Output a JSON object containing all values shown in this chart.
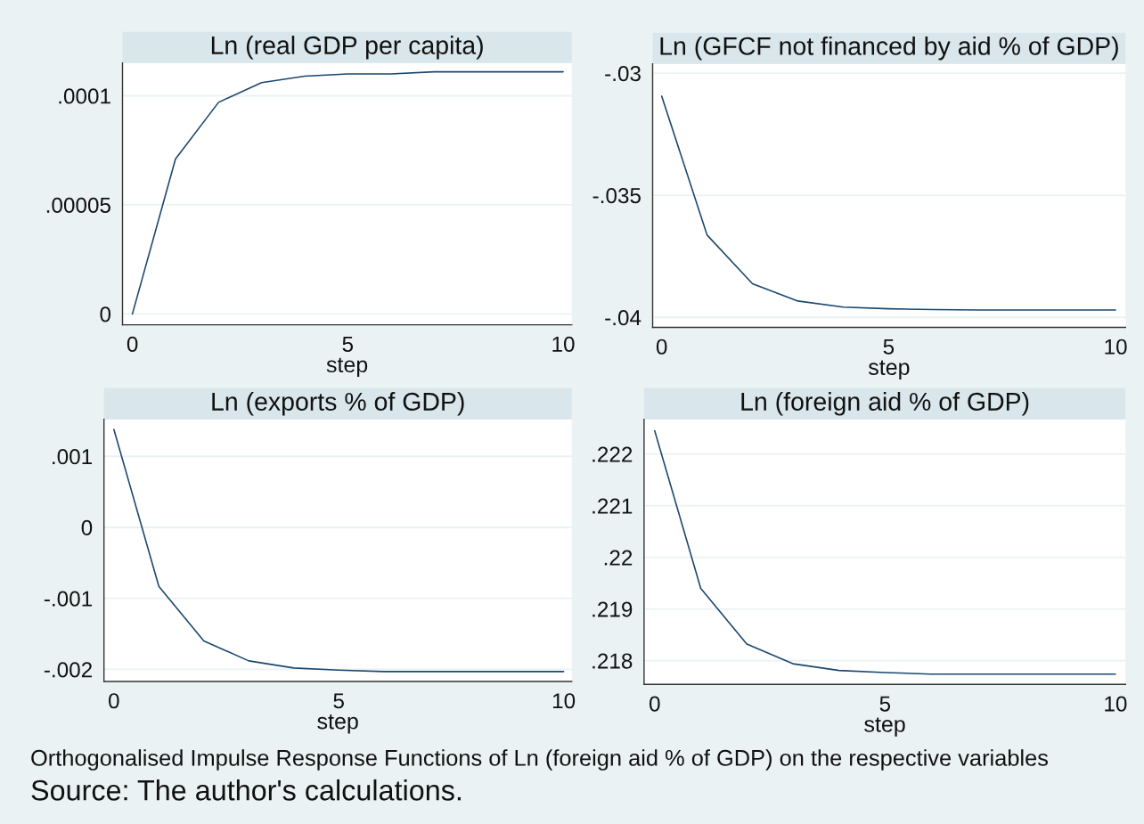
{
  "chart_data": [
    {
      "type": "line",
      "title": "Ln (real GDP per capita)",
      "xlabel": "step",
      "x": [
        0,
        1,
        2,
        3,
        4,
        5,
        6,
        7,
        8,
        9,
        10
      ],
      "series": [
        {
          "color": "#1a476f",
          "values": [
            0,
            7.1e-05,
            9.7e-05,
            0.000106,
            0.000109,
            0.00011,
            0.00011,
            0.000111,
            0.000111,
            0.000111,
            0.000111
          ]
        }
      ],
      "xlim": [
        -0.23,
        10.2
      ],
      "ylim": [
        -5e-06,
        0.000115
      ],
      "xticks": [
        0,
        5,
        10
      ],
      "yticks": [
        0,
        {
          "value": 5e-05,
          "label": ".00005"
        },
        {
          "value": 0.0001,
          "label": ".0001"
        }
      ],
      "grid": "y"
    },
    {
      "type": "line",
      "title": "Ln (GFCF not financed by aid % of GDP)",
      "xlabel": "step",
      "x": [
        0,
        1,
        2,
        3,
        4,
        5,
        6,
        7,
        8,
        9,
        10
      ],
      "series": [
        {
          "color": "#1a476f",
          "values": [
            -0.03094,
            -0.03663,
            -0.03862,
            -0.03933,
            -0.03958,
            -0.03965,
            -0.03968,
            -0.0397,
            -0.0397,
            -0.0397,
            -0.0397
          ]
        }
      ],
      "xlim": [
        -0.2,
        10.22
      ],
      "ylim": [
        -0.04041,
        -0.02962
      ],
      "xticks": [
        0,
        5,
        10
      ],
      "yticks": [
        {
          "value": -0.04,
          "label": "-.04"
        },
        {
          "value": -0.035,
          "label": "-.035"
        },
        {
          "value": -0.03,
          "label": "-.03"
        }
      ],
      "grid": "y"
    },
    {
      "type": "line",
      "title": "Ln (exports % of GDP)",
      "xlabel": "step",
      "x": [
        0,
        1,
        2,
        3,
        4,
        5,
        6,
        7,
        8,
        9,
        10
      ],
      "series": [
        {
          "color": "#1a476f",
          "values": [
            0.00138,
            -0.00083,
            -0.0016,
            -0.00188,
            -0.00198,
            -0.00201,
            -0.00203,
            -0.00203,
            -0.00203,
            -0.00203,
            -0.00203
          ]
        }
      ],
      "xlim": [
        -0.22,
        10.18
      ],
      "ylim": [
        -0.00217,
        0.00152
      ],
      "xticks": [
        0,
        5,
        10
      ],
      "yticks": [
        {
          "value": -0.002,
          "label": "-.002"
        },
        {
          "value": -0.001,
          "label": "-.001"
        },
        0,
        {
          "value": 0.001,
          "label": ".001"
        }
      ],
      "grid": "y"
    },
    {
      "type": "line",
      "title": "Ln (foreign aid % of GDP)",
      "xlabel": "step",
      "x": [
        0,
        1,
        2,
        3,
        4,
        5,
        6,
        7,
        8,
        9,
        10
      ],
      "series": [
        {
          "color": "#1a476f",
          "values": [
            0.22245,
            0.2194,
            0.21832,
            0.21794,
            0.21781,
            0.21777,
            0.21774,
            0.21774,
            0.21774,
            0.21774,
            0.21774
          ]
        }
      ],
      "xlim": [
        -0.23,
        10.22
      ],
      "ylim": [
        0.21754,
        0.22267
      ],
      "xticks": [
        0,
        5,
        10
      ],
      "yticks": [
        {
          "value": 0.218,
          "label": ".218"
        },
        {
          "value": 0.219,
          "label": ".219"
        },
        {
          "value": 0.22,
          "label": ".22"
        },
        {
          "value": 0.221,
          "label": ".221"
        },
        {
          "value": 0.222,
          "label": ".222"
        }
      ],
      "grid": "y",
      "annotations": [
        "Orthogonalised Impulse Response Functions of Ln (foreign aid % of GDP) on the respective variables",
        "Source: The author's calculations."
      ]
    }
  ]
}
